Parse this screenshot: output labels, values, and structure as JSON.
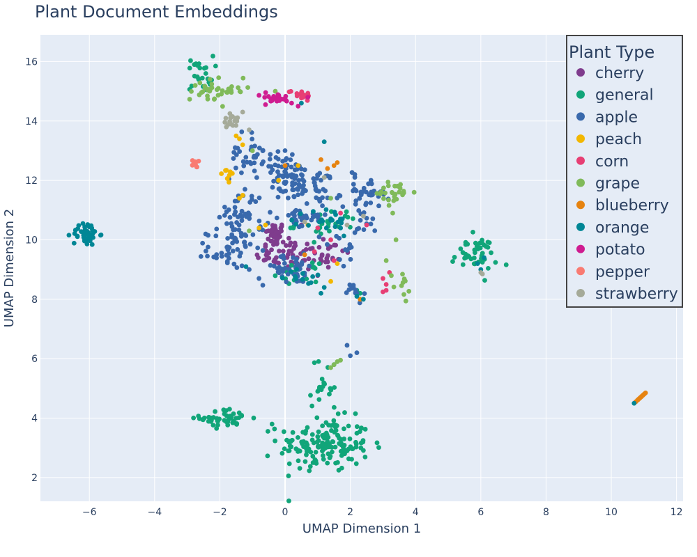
{
  "chart_data": {
    "type": "scatter",
    "title": "Plant Document Embeddings",
    "xlabel": "UMAP Dimension 1",
    "ylabel": "UMAP Dimension 2",
    "xlim": [
      -7.5,
      12.2
    ],
    "ylim": [
      1.2,
      16.9
    ],
    "x_ticks": [
      -6,
      -4,
      -2,
      0,
      2,
      4,
      6,
      8,
      10,
      12
    ],
    "y_ticks": [
      2,
      4,
      6,
      8,
      10,
      12,
      14,
      16
    ],
    "grid": true,
    "legend": {
      "title": "Plant Type",
      "position": "top-right"
    },
    "series": [
      {
        "name": "cherry",
        "color": "#7f3c8d",
        "clusters": [
          {
            "cx": -0.3,
            "cy": 10.2,
            "sx": 0.15,
            "sy": 0.2,
            "n": 40
          },
          {
            "cx": 0.0,
            "cy": 9.5,
            "sx": 0.45,
            "sy": 0.25,
            "n": 45
          },
          {
            "cx": 1.2,
            "cy": 9.5,
            "sx": 0.4,
            "sy": 0.35,
            "n": 30
          }
        ],
        "points": [
          [
            0.5,
            10.5
          ],
          [
            0.4,
            9.0
          ],
          [
            1.0,
            8.8
          ]
        ]
      },
      {
        "name": "general",
        "color": "#11a579",
        "clusters": [
          {
            "cx": 1.2,
            "cy": 3.1,
            "sx": 0.7,
            "sy": 0.45,
            "n": 160
          },
          {
            "cx": -1.8,
            "cy": 4.0,
            "sx": 0.4,
            "sy": 0.15,
            "n": 45
          },
          {
            "cx": 1.2,
            "cy": 5.0,
            "sx": 0.2,
            "sy": 0.5,
            "n": 20
          },
          {
            "cx": -2.6,
            "cy": 15.6,
            "sx": 0.2,
            "sy": 0.3,
            "n": 25
          },
          {
            "cx": 5.8,
            "cy": 9.5,
            "sx": 0.35,
            "sy": 0.3,
            "n": 45
          },
          {
            "cx": 1.3,
            "cy": 10.5,
            "sx": 0.5,
            "sy": 0.25,
            "n": 25
          },
          {
            "cx": 0.4,
            "cy": 8.9,
            "sx": 0.3,
            "sy": 0.15,
            "n": 15
          }
        ],
        "points": [
          [
            -0.4,
            3.8
          ],
          [
            1.5,
            5.8
          ],
          [
            2.3,
            8.2
          ],
          [
            2.2,
            8.3
          ]
        ]
      },
      {
        "name": "apple",
        "color": "#3969ac",
        "clusters": [
          {
            "cx": 0.2,
            "cy": 12.0,
            "sx": 0.4,
            "sy": 0.35,
            "n": 60
          },
          {
            "cx": 1.0,
            "cy": 11.8,
            "sx": 0.35,
            "sy": 0.35,
            "n": 40
          },
          {
            "cx": -1.2,
            "cy": 12.8,
            "sx": 0.25,
            "sy": 0.4,
            "n": 30
          },
          {
            "cx": -1.3,
            "cy": 10.8,
            "sx": 0.35,
            "sy": 0.45,
            "n": 50
          },
          {
            "cx": -1.7,
            "cy": 9.7,
            "sx": 0.35,
            "sy": 0.3,
            "n": 45
          },
          {
            "cx": 0.5,
            "cy": 10.7,
            "sx": 0.4,
            "sy": 0.2,
            "n": 30
          },
          {
            "cx": 0.2,
            "cy": 9.0,
            "sx": 0.5,
            "sy": 0.25,
            "n": 40
          },
          {
            "cx": 2.5,
            "cy": 11.6,
            "sx": 0.35,
            "sy": 0.25,
            "n": 35
          },
          {
            "cx": 2.3,
            "cy": 10.5,
            "sx": 0.2,
            "sy": 0.3,
            "n": 15
          },
          {
            "cx": 2.1,
            "cy": 8.2,
            "sx": 0.15,
            "sy": 0.2,
            "n": 12
          },
          {
            "cx": -0.3,
            "cy": 12.7,
            "sx": 0.3,
            "sy": 0.25,
            "n": 15
          },
          {
            "cx": 1.8,
            "cy": 9.5,
            "sx": 0.2,
            "sy": 0.35,
            "n": 10
          }
        ],
        "points": [
          [
            2.2,
            6.2
          ],
          [
            2.0,
            6.1
          ],
          [
            1.9,
            6.45
          ],
          [
            -0.8,
            8.7
          ],
          [
            -1.1,
            9.0
          ]
        ]
      },
      {
        "name": "peach",
        "color": "#f2b701",
        "clusters": [
          {
            "cx": -1.8,
            "cy": 12.3,
            "sx": 0.15,
            "sy": 0.2,
            "n": 10
          }
        ],
        "points": [
          [
            -1.5,
            13.5
          ],
          [
            -1.3,
            13.2
          ],
          [
            -1.4,
            13.4
          ],
          [
            -1.3,
            11.5
          ],
          [
            -1.4,
            11.4
          ],
          [
            -0.8,
            10.4
          ],
          [
            -0.6,
            10.5
          ],
          [
            0.7,
            10.5
          ],
          [
            1.4,
            8.6
          ],
          [
            1.6,
            9.2
          ],
          [
            -0.2,
            12.0
          ],
          [
            0.4,
            12.5
          ]
        ]
      },
      {
        "name": "corn",
        "color": "#e73f74",
        "clusters": [
          {
            "cx": 0.5,
            "cy": 14.9,
            "sx": 0.2,
            "sy": 0.08,
            "n": 16
          }
        ],
        "points": [
          [
            3.1,
            8.3
          ],
          [
            3.0,
            8.25
          ],
          [
            3.1,
            8.5
          ],
          [
            3.0,
            8.7
          ],
          [
            3.2,
            8.9
          ],
          [
            2.5,
            10.5
          ],
          [
            1.7,
            10.9
          ],
          [
            1.5,
            9.3
          ],
          [
            0.9,
            9.6
          ],
          [
            1.4,
            10.0
          ],
          [
            1.0,
            10.4
          ]
        ]
      },
      {
        "name": "grape",
        "color": "#80ba5a",
        "clusters": [
          {
            "cx": -2.3,
            "cy": 15.0,
            "sx": 0.3,
            "sy": 0.25,
            "n": 28
          },
          {
            "cx": -1.7,
            "cy": 15.1,
            "sx": 0.25,
            "sy": 0.1,
            "n": 12
          },
          {
            "cx": 3.4,
            "cy": 11.6,
            "sx": 0.3,
            "sy": 0.2,
            "n": 25
          },
          {
            "cx": 3.6,
            "cy": 8.4,
            "sx": 0.15,
            "sy": 0.3,
            "n": 10
          }
        ],
        "points": [
          [
            1.5,
            5.8
          ],
          [
            1.6,
            5.9
          ],
          [
            1.4,
            5.7
          ],
          [
            1.7,
            5.95
          ],
          [
            -0.3,
            15.0
          ],
          [
            3.3,
            10.9
          ],
          [
            3.4,
            10.0
          ],
          [
            3.1,
            9.3
          ],
          [
            1.4,
            11.4
          ],
          [
            -1.0,
            13.0
          ],
          [
            -1.1,
            10.3
          ]
        ]
      },
      {
        "name": "blueberry",
        "color": "#e68310",
        "clusters": [],
        "points": [
          [
            10.8,
            4.6
          ],
          [
            10.85,
            4.65
          ],
          [
            10.9,
            4.7
          ],
          [
            10.95,
            4.75
          ],
          [
            11.0,
            4.8
          ],
          [
            11.05,
            4.85
          ],
          [
            10.75,
            4.55
          ],
          [
            10.82,
            4.62
          ],
          [
            10.88,
            4.68
          ],
          [
            10.92,
            4.72
          ],
          [
            10.97,
            4.77
          ],
          [
            11.02,
            4.82
          ],
          [
            1.6,
            12.6
          ],
          [
            1.5,
            12.5
          ],
          [
            1.3,
            12.4
          ],
          [
            1.1,
            12.7
          ],
          [
            0.0,
            12.5
          ],
          [
            0.6,
            9.5
          ],
          [
            2.3,
            8.0
          ]
        ]
      },
      {
        "name": "orange",
        "color": "#008695",
        "clusters": [
          {
            "cx": -6.1,
            "cy": 10.2,
            "sx": 0.2,
            "sy": 0.2,
            "n": 45
          },
          {
            "cx": 1.3,
            "cy": 10.6,
            "sx": 0.35,
            "sy": 0.25,
            "n": 22
          },
          {
            "cx": 0.6,
            "cy": 8.8,
            "sx": 0.3,
            "sy": 0.15,
            "n": 12
          }
        ],
        "points": [
          [
            1.2,
            13.3
          ],
          [
            6.0,
            9.0
          ],
          [
            5.9,
            9.2
          ],
          [
            6.1,
            9.4
          ],
          [
            10.7,
            4.5
          ],
          [
            -1.2,
            9.1
          ],
          [
            2.4,
            8.0
          ],
          [
            2.2,
            8.1
          ],
          [
            0.5,
            14.6
          ],
          [
            1.2,
            8.4
          ],
          [
            1.1,
            8.2
          ]
        ]
      },
      {
        "name": "potato",
        "color": "#cf1c90",
        "clusters": [
          {
            "cx": -0.3,
            "cy": 14.75,
            "sx": 0.25,
            "sy": 0.1,
            "n": 22
          }
        ],
        "points": [
          [
            0.7,
            14.8
          ],
          [
            0.4,
            14.5
          ],
          [
            0.2,
            14.6
          ],
          [
            -0.6,
            14.55
          ]
        ]
      },
      {
        "name": "pepper",
        "color": "#f97b72",
        "clusters": [
          {
            "cx": -2.8,
            "cy": 12.55,
            "sx": 0.08,
            "sy": 0.06,
            "n": 8
          }
        ],
        "points": [
          [
            -2.65,
            12.65
          ],
          [
            -2.7,
            12.45
          ]
        ]
      },
      {
        "name": "strawberry",
        "color": "#a5aa99",
        "clusters": [
          {
            "cx": -1.6,
            "cy": 14.0,
            "sx": 0.15,
            "sy": 0.12,
            "n": 15
          }
        ],
        "points": [
          [
            -1.3,
            14.3
          ],
          [
            -1.8,
            13.8
          ],
          [
            6.0,
            8.9
          ],
          [
            6.05,
            8.85
          ],
          [
            -1.1,
            13.7
          ],
          [
            1.2,
            12.1
          ],
          [
            1.9,
            10.5
          ],
          [
            0.6,
            10.6
          ],
          [
            2.4,
            10.8
          ]
        ]
      }
    ]
  }
}
